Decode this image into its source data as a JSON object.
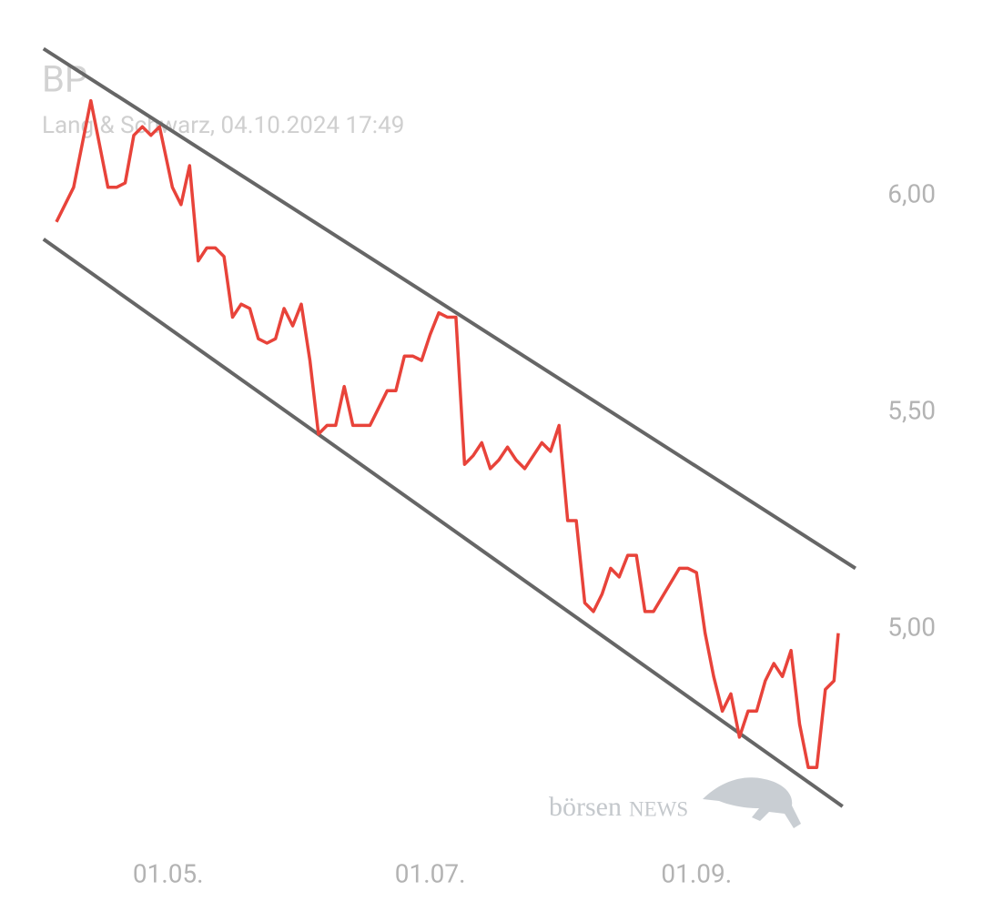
{
  "chart_data": {
    "type": "line",
    "title": "BP",
    "subtitle": "Lang & Schwarz, 04.10.2024 17:49",
    "x": [
      "05.04.",
      "09.04.",
      "13.04.",
      "17.04.",
      "19.04.",
      "21.04.",
      "23.04.",
      "25.04.",
      "27.04.",
      "29.04.",
      "02.05.",
      "04.05.",
      "06.05.",
      "08.05.",
      "10.05.",
      "12.05.",
      "14.05.",
      "16.05.",
      "18.05.",
      "20.05.",
      "22.05.",
      "24.05.",
      "26.05.",
      "28.05.",
      "30.05.",
      "01.06.",
      "03.06.",
      "05.06.",
      "07.06.",
      "09.06.",
      "11.06.",
      "13.06.",
      "15.06.",
      "17.06.",
      "21.06.",
      "23.06.",
      "25.06.",
      "27.06.",
      "29.06.",
      "01.07.",
      "03.07.",
      "05.07.",
      "07.07.",
      "09.07.",
      "11.07.",
      "13.07.",
      "15.07.",
      "17.07.",
      "19.07.",
      "21.07.",
      "23.07.",
      "25.07.",
      "27.07.",
      "29.07.",
      "31.07.",
      "02.08.",
      "04.08.",
      "06.08.",
      "08.08.",
      "10.08.",
      "12.08.",
      "14.08.",
      "16.08.",
      "18.08.",
      "20.08.",
      "22.08.",
      "28.08.",
      "30.08.",
      "01.09.",
      "03.09.",
      "05.09.",
      "07.09.",
      "09.09.",
      "11.09.",
      "13.09.",
      "15.09.",
      "17.09.",
      "19.09.",
      "21.09.",
      "23.09.",
      "25.09.",
      "27.09.",
      "29.09.",
      "01.10.",
      "03.10.",
      "04.10."
    ],
    "values": [
      5.94,
      6.02,
      6.22,
      6.02,
      6.02,
      6.03,
      6.14,
      6.16,
      6.14,
      6.16,
      6.02,
      5.98,
      6.07,
      5.85,
      5.88,
      5.88,
      5.86,
      5.72,
      5.75,
      5.74,
      5.67,
      5.66,
      5.67,
      5.74,
      5.7,
      5.75,
      5.62,
      5.45,
      5.47,
      5.47,
      5.56,
      5.47,
      5.47,
      5.47,
      5.55,
      5.55,
      5.63,
      5.63,
      5.62,
      5.68,
      5.73,
      5.72,
      5.72,
      5.38,
      5.4,
      5.43,
      5.37,
      5.39,
      5.42,
      5.39,
      5.37,
      5.4,
      5.43,
      5.41,
      5.47,
      5.25,
      5.25,
      5.06,
      5.04,
      5.08,
      5.14,
      5.12,
      5.17,
      5.17,
      5.04,
      5.04,
      5.14,
      5.14,
      5.13,
      4.99,
      4.89,
      4.81,
      4.85,
      4.75,
      4.81,
      4.81,
      4.88,
      4.92,
      4.89,
      4.95,
      4.78,
      4.68,
      4.68,
      4.86,
      4.88,
      4.99
    ],
    "color": "#e8433a",
    "trendlines": [
      {
        "x": [
          "02.04.",
          "08.10."
        ],
        "values": [
          6.34,
          5.14
        ],
        "color": "#666666"
      },
      {
        "x": [
          "02.04.",
          "05.10."
        ],
        "values": [
          5.9,
          4.59
        ],
        "color": "#666666"
      }
    ],
    "xlim": [
      "05.04.",
      "04.10."
    ],
    "xticks": [
      "01.05.",
      "01.07.",
      "01.09."
    ],
    "ylim": [
      4.55,
      6.4
    ],
    "yticks": [
      {
        "value": 5,
        "label": "5,00"
      },
      {
        "value": 5.5,
        "label": "5,50"
      },
      {
        "value": 6,
        "label": "6,00"
      }
    ],
    "grid": false,
    "watermark": {
      "brand": "börsen",
      "suffix": "NEWS"
    }
  }
}
